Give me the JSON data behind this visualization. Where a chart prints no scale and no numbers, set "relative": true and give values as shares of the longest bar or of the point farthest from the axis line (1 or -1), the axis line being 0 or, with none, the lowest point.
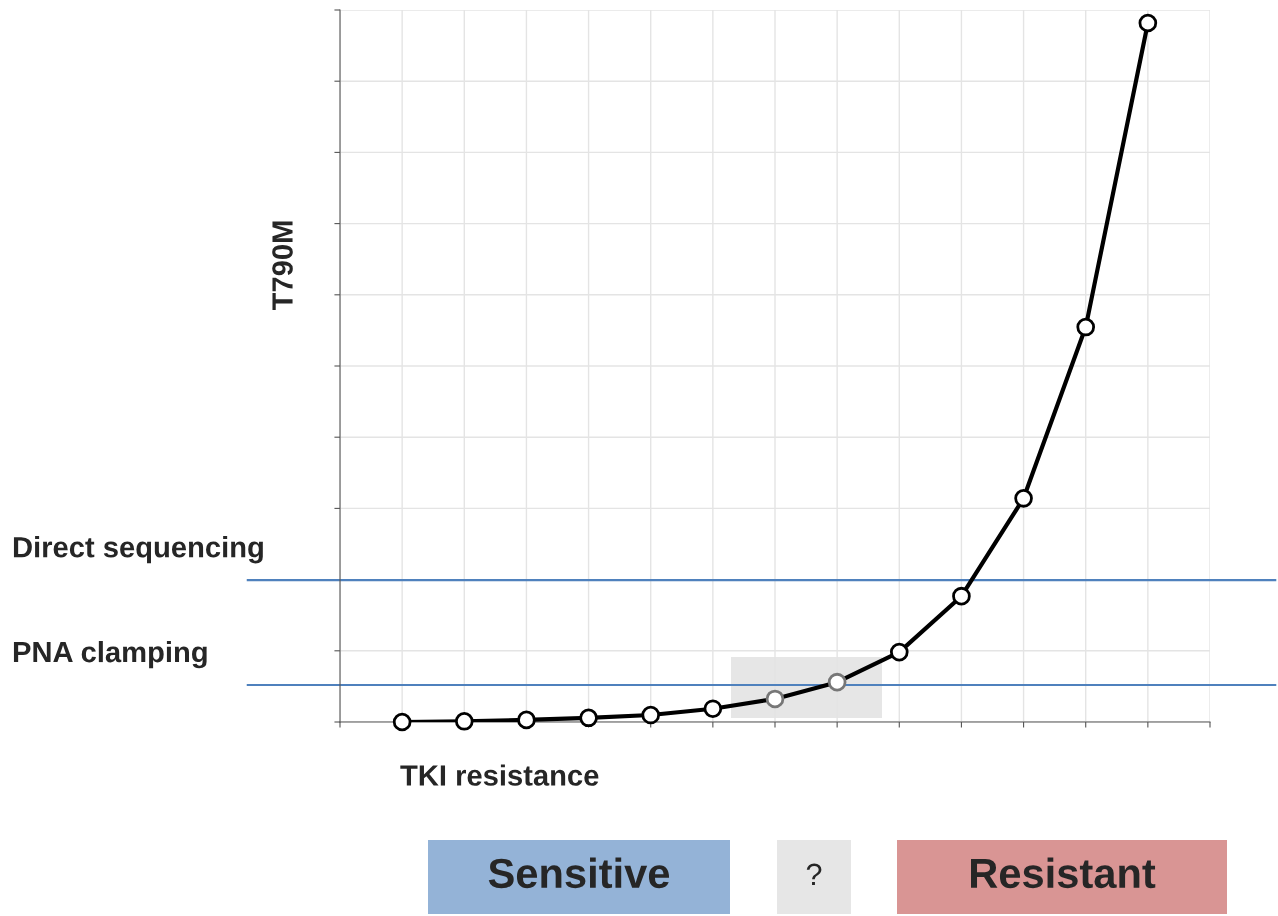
{
  "chart_data": {
    "type": "line",
    "relative": true,
    "xlabel": "TKI resistance",
    "ylabel": "T790M",
    "categories": [
      null,
      null,
      null,
      null,
      null,
      null,
      null,
      null,
      null,
      null,
      null,
      null,
      null
    ],
    "series": [
      {
        "color": "#000000",
        "colors": [
          "#000000",
          "#000000",
          "#000000",
          "#000000",
          "#000000",
          "#000000",
          "#777777",
          "#777777",
          "#000000",
          "#000000",
          "#000000",
          "#000000",
          "#000000"
        ],
        "values": [
          0,
          0.001,
          0.003,
          0.006,
          0.01,
          0.019,
          0.033,
          0.057,
          0.1,
          0.18,
          0.32,
          0.565,
          1
        ]
      }
    ],
    "ref_lines": [
      {
        "axis": "y",
        "value": 0.203,
        "label": "Direct sequencing",
        "color": "#4f81bd"
      },
      {
        "axis": "y",
        "value": 0.053,
        "label": "PNA clamping",
        "color": "#4f81bd"
      }
    ],
    "annotations": [
      "Sensitive",
      "?",
      "Resistant"
    ],
    "marker": "circle",
    "line_style": "solid",
    "grid": true,
    "tick_labels": false
  }
}
